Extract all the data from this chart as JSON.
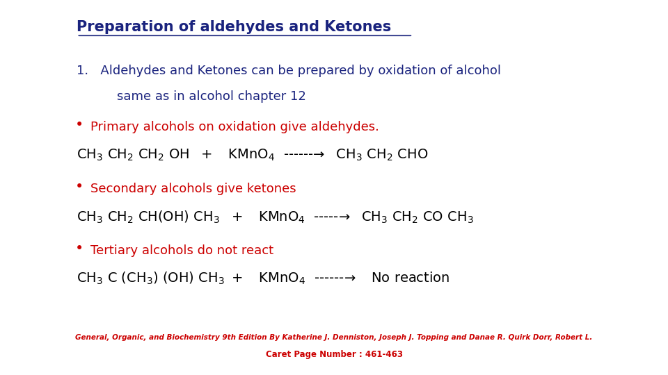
{
  "background_color": "#ffffff",
  "title": "Preparation of aldehydes and Ketones",
  "title_color": "#1a237e",
  "body_color": "#1a237e",
  "red_color": "#cc0000",
  "black_color": "#000000",
  "footer1": "General, Organic, and Biochemistry 9th Edition By Katherine J. Denniston, Joseph J. Topping and Danae R. Quirk Dorr, Robert L.",
  "footer2": "Caret Page Number : 461-463",
  "font_main": 13,
  "font_title": 15,
  "font_eq": 14
}
